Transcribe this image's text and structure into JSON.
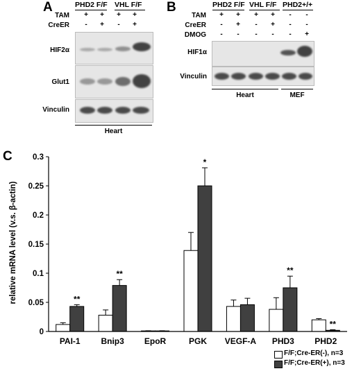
{
  "panel_a": {
    "letter": "A",
    "group_labels": [
      "PHD2 F/F",
      "VHL F/F"
    ],
    "row_labels": {
      "tam": "TAM",
      "creer": "CreER"
    },
    "tam": [
      "+",
      "+",
      "+",
      "+"
    ],
    "creer": [
      "-",
      "+",
      "-",
      "+"
    ],
    "blots": [
      "HIF2α",
      "Glut1",
      "Vinculin"
    ],
    "tissue": "Heart"
  },
  "panel_b": {
    "letter": "B",
    "group_labels": [
      "PHD2 F/F",
      "VHL F/F",
      "PHD2+/+"
    ],
    "row_labels": {
      "tam": "TAM",
      "creer": "CreER",
      "dmog": "DMOG"
    },
    "tam": [
      "+",
      "+",
      "+",
      "+",
      "-",
      "-"
    ],
    "creer": [
      "-",
      "+",
      "-",
      "+",
      "-",
      "-"
    ],
    "dmog": [
      "-",
      "-",
      "-",
      "-",
      "-",
      "+"
    ],
    "blots": [
      "HIF1α",
      "Vinculin"
    ],
    "tissues": [
      "Heart",
      "MEF"
    ]
  },
  "panel_c": {
    "letter": "C",
    "chart_data": {
      "type": "bar",
      "ylabel": "relative mRNA level (v.s. β-actin)",
      "ylim": [
        0,
        0.3
      ],
      "yticks": [
        "0",
        "0.05",
        "0.1",
        "0.15",
        "0.2",
        "0.25",
        "0.3"
      ],
      "categories": [
        "PAI-1",
        "Bnip3",
        "EpoR",
        "PGK",
        "VEGF-A",
        "PHD3",
        "PHD2"
      ],
      "series": [
        {
          "name": "F/F;Cre-ER(-), n=3",
          "color": "#ffffff",
          "values": [
            0.012,
            0.028,
            0.001,
            0.139,
            0.043,
            0.038,
            0.02
          ],
          "errors": [
            0.003,
            0.009,
            0.0003,
            0.031,
            0.011,
            0.02,
            0.002
          ]
        },
        {
          "name": "F/F;Cre-ER(+), n=3",
          "color": "#404040",
          "values": [
            0.043,
            0.079,
            0.001,
            0.25,
            0.046,
            0.075,
            0.002
          ],
          "errors": [
            0.003,
            0.01,
            0.0003,
            0.031,
            0.011,
            0.02,
            0.001
          ]
        }
      ],
      "significance": [
        "**",
        "**",
        "",
        "*",
        "",
        "**",
        "**"
      ],
      "legend_position": "bottom-right"
    }
  }
}
